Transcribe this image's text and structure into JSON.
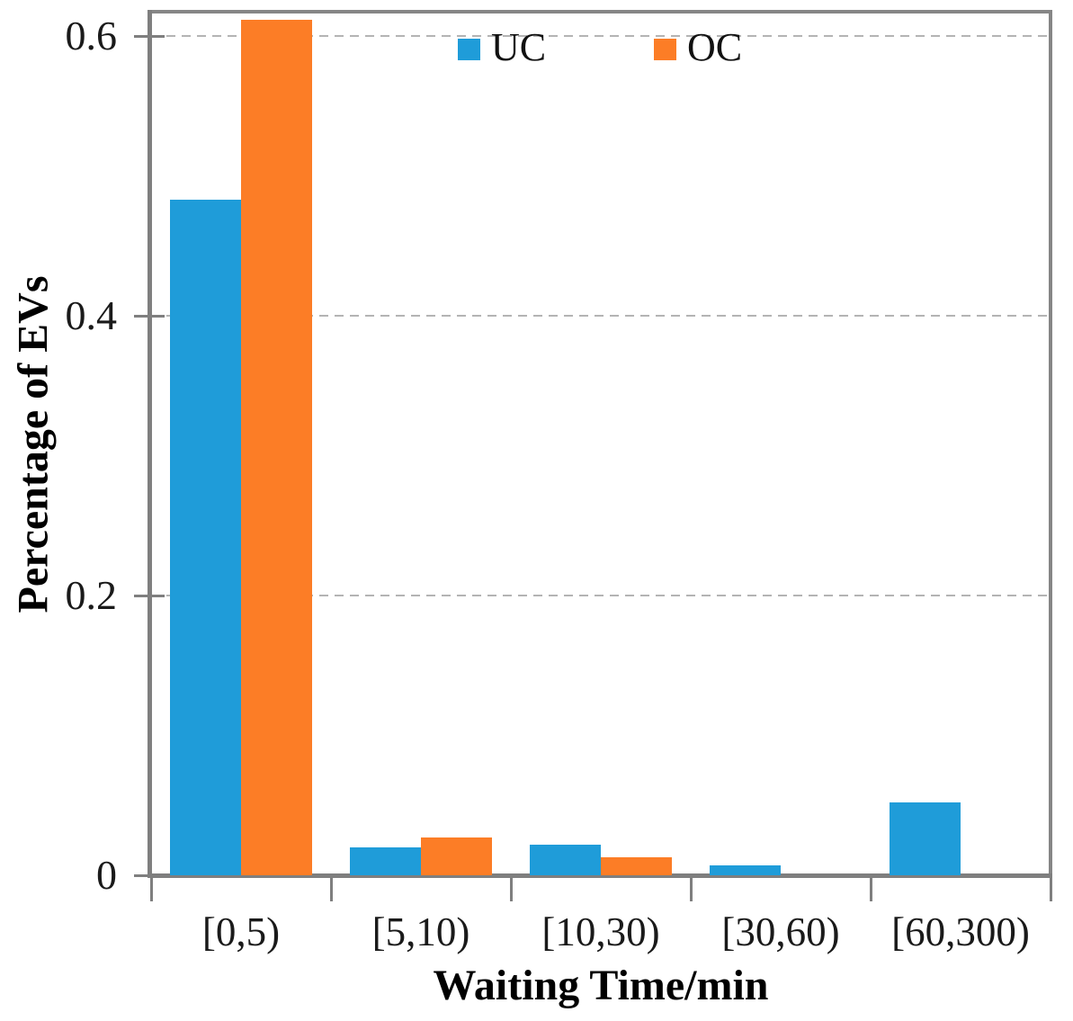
{
  "chart_data": {
    "type": "bar",
    "title": "",
    "xlabel": "Waiting Time/min",
    "ylabel": "Percentage of EVs",
    "categories": [
      "[0,5)",
      "[5,10)",
      "[10,30)",
      "[30,60)",
      "[60,300)"
    ],
    "series": [
      {
        "name": "UC",
        "color": "#1F9CD9",
        "values": [
          0.483,
          0.02,
          0.022,
          0.007,
          0.052
        ]
      },
      {
        "name": "OC",
        "color": "#FC7D26",
        "values": [
          0.612,
          0.027,
          0.013,
          0,
          0
        ]
      }
    ],
    "y_ticks": [
      0,
      0.2,
      0.4,
      0.6
    ],
    "y_tick_labels": [
      "0",
      "0.2",
      "0.4",
      "0.6"
    ],
    "ylim": [
      0,
      0.617
    ],
    "grid": "horizontal-dashed",
    "legend_position": "top-center-inside"
  },
  "legend": {
    "items": [
      {
        "label": "UC",
        "color": "#1F9CD9"
      },
      {
        "label": "OC",
        "color": "#FC7D26"
      }
    ]
  },
  "colors": {
    "uc": "#1F9CD9",
    "oc": "#FC7D26",
    "frame": "#868686",
    "axis": "#7f7f7f",
    "gridline": "#b4b4b4",
    "text": "#1a1a1a"
  }
}
